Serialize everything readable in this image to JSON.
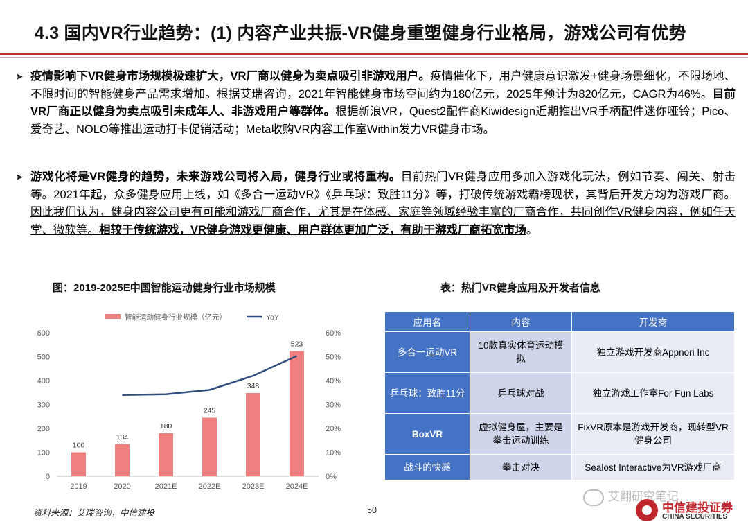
{
  "header": {
    "title": "4.3 国内VR行业趋势：(1) 内容产业共振-VR健身重塑健身行业格局，游戏公司有优势"
  },
  "bullets": [
    {
      "bold_lead": "疫情影响下VR健身市场规模极速扩大，VR厂商以健身为卖点吸引非游戏用户。",
      "plain1": "疫情催化下，用户健康意识激发+健身场景细化，不限场地、不限时间的智能健身产品需求增加。根据艾瑞咨询，2021年智能健身市场空间约为180亿元，2025年预计为820亿元，CAGR为46%。",
      "bold_mid": "目前VR厂商正以健身为卖点吸引未成年人、非游戏用户等群体。",
      "plain2": "根据新浪VR，Quest2配件商Kiwidesign近期推出VR手柄配件迷你哑铃；Pico、爱奇艺、NOLO等推出运动打卡促销活动；Meta收购VR内容工作室Within发力VR健身市场。"
    },
    {
      "bold_lead": "游戏化将是VR健身的趋势，未来游戏公司将入局，健身行业或将重构。",
      "plain1": "目前热门VR健身应用多加入游戏化玩法，例如节奏、闯关、射击等。2021年起，众多健身应用上线，如《多合一运动VR》《乒乓球：致胜11分》等，打破传统游戏霸榜现状，其背后开发方均为游戏厂商。",
      "underline": "因此我们认为，健身内容公司更有可能和游戏厂商合作，尤其是在体感、家庭等领域经验丰富的厂商合作，共同创作VR健身内容，例如任天堂、微软等。",
      "bold_underline": "相较于传统游戏，VR健身游戏更健康、用户群体更加广泛，有助于游戏厂商拓宽市场",
      "tail": "。"
    }
  ],
  "figure": {
    "title": "图：2019-2025E中国智能运动健身行业市场规模"
  },
  "chart_data": {
    "type": "bar",
    "categories": [
      "2019",
      "2020",
      "2021E",
      "2022E",
      "2023E",
      "2024E"
    ],
    "series": [
      {
        "name": "智能运动健身行业规模（亿元）",
        "kind": "bar",
        "axis": "left",
        "color": "#f08080",
        "values": [
          100,
          134,
          180,
          245,
          348,
          523
        ]
      },
      {
        "name": "YoY",
        "kind": "line",
        "axis": "right",
        "color": "#2f4d7e",
        "values": [
          null,
          34,
          34.3,
          36.1,
          42,
          50.3
        ]
      }
    ],
    "y_left": {
      "min": 0,
      "max": 600,
      "ticks": [
        "0",
        "100",
        "200",
        "300",
        "400",
        "500",
        "600"
      ]
    },
    "y_right": {
      "min": 0,
      "max": 60,
      "ticks": [
        "0%",
        "10%",
        "20%",
        "30%",
        "40%",
        "50%",
        "60%"
      ]
    },
    "data_labels": [
      "100",
      "134",
      "180",
      "245",
      "348",
      "523"
    ],
    "legend": "top",
    "grid": false
  },
  "table": {
    "title": "表：热门VR健身应用及开发者信息",
    "headers": [
      "应用名",
      "内容",
      "开发商"
    ],
    "rows": [
      [
        "多合一运动VR",
        "10款真实体育运动模拟",
        "独立游戏开发商Appnori Inc"
      ],
      [
        "乒乓球：致胜11分",
        "乒乓球对战",
        "独立游戏工作室For Fun Labs"
      ],
      [
        "BoxVR",
        "虚拟健身屋，主要是拳击运动训练",
        "FixVR原本是游戏开发商，现转型VR健身公司"
      ],
      [
        "战斗的快感",
        "拳击对决",
        "Sealost Interactive为VR游戏厂商"
      ]
    ]
  },
  "footer": {
    "source": "资料来源：艾瑞咨询，中信建投",
    "page": "50"
  },
  "watermark": {
    "text": "艾翻研究笔记"
  },
  "logo": {
    "cn": "中信建投证券",
    "en": "CHINA SECURITIES",
    "color": "#c0272d"
  }
}
